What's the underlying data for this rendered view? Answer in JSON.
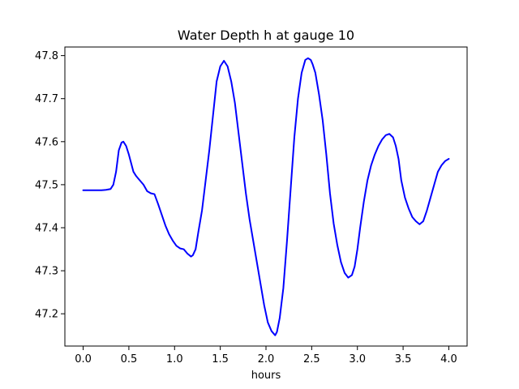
{
  "chart_data": {
    "type": "line",
    "title": "Water Depth h at gauge 10",
    "xlabel": "hours",
    "ylabel": "",
    "xlim": [
      -0.2,
      4.2
    ],
    "ylim": [
      47.125,
      47.82
    ],
    "xticks": [
      0.0,
      0.5,
      1.0,
      1.5,
      2.0,
      2.5,
      3.0,
      3.5,
      4.0
    ],
    "xtick_labels": [
      "0.0",
      "0.5",
      "1.0",
      "1.5",
      "2.0",
      "2.5",
      "3.0",
      "3.5",
      "4.0"
    ],
    "yticks": [
      47.2,
      47.3,
      47.4,
      47.5,
      47.6,
      47.7,
      47.8
    ],
    "ytick_labels": [
      "47.2",
      "47.3",
      "47.4",
      "47.5",
      "47.6",
      "47.7",
      "47.8"
    ],
    "grid": false,
    "series": [
      {
        "color": "#0000ff",
        "x": [
          0.0,
          0.05,
          0.1,
          0.15,
          0.2,
          0.25,
          0.3,
          0.33,
          0.36,
          0.39,
          0.42,
          0.44,
          0.47,
          0.5,
          0.55,
          0.58,
          0.62,
          0.66,
          0.7,
          0.74,
          0.78,
          0.82,
          0.86,
          0.9,
          0.94,
          0.98,
          1.02,
          1.06,
          1.1,
          1.14,
          1.18,
          1.2,
          1.23,
          1.26,
          1.3,
          1.34,
          1.38,
          1.42,
          1.46,
          1.5,
          1.54,
          1.58,
          1.62,
          1.66,
          1.7,
          1.74,
          1.78,
          1.82,
          1.86,
          1.9,
          1.94,
          1.98,
          2.02,
          2.06,
          2.1,
          2.12,
          2.15,
          2.19,
          2.23,
          2.27,
          2.31,
          2.35,
          2.39,
          2.43,
          2.46,
          2.49,
          2.51,
          2.54,
          2.58,
          2.62,
          2.66,
          2.7,
          2.74,
          2.78,
          2.82,
          2.86,
          2.9,
          2.94,
          2.97,
          3.0,
          3.03,
          3.07,
          3.11,
          3.15,
          3.19,
          3.23,
          3.27,
          3.31,
          3.35,
          3.39,
          3.42,
          3.45,
          3.48,
          3.52,
          3.56,
          3.6,
          3.64,
          3.68,
          3.72,
          3.76,
          3.8,
          3.84,
          3.88,
          3.92,
          3.96,
          4.0
        ],
        "y": [
          47.487,
          47.487,
          47.487,
          47.487,
          47.487,
          47.488,
          47.49,
          47.5,
          47.53,
          47.58,
          47.598,
          47.6,
          47.59,
          47.57,
          47.53,
          47.52,
          47.51,
          47.5,
          47.485,
          47.48,
          47.478,
          47.455,
          47.43,
          47.405,
          47.385,
          47.37,
          47.358,
          47.352,
          47.35,
          47.34,
          47.333,
          47.336,
          47.35,
          47.39,
          47.44,
          47.51,
          47.58,
          47.66,
          47.74,
          47.775,
          47.788,
          47.775,
          47.74,
          47.69,
          47.62,
          47.55,
          47.48,
          47.42,
          47.37,
          47.32,
          47.27,
          47.22,
          47.18,
          47.16,
          47.15,
          47.158,
          47.19,
          47.26,
          47.37,
          47.49,
          47.61,
          47.7,
          47.76,
          47.79,
          47.794,
          47.79,
          47.78,
          47.76,
          47.71,
          47.65,
          47.57,
          47.48,
          47.41,
          47.36,
          47.32,
          47.295,
          47.284,
          47.29,
          47.31,
          47.35,
          47.4,
          47.46,
          47.51,
          47.545,
          47.57,
          47.59,
          47.605,
          47.615,
          47.618,
          47.61,
          47.59,
          47.56,
          47.51,
          47.47,
          47.445,
          47.425,
          47.415,
          47.408,
          47.415,
          47.44,
          47.47,
          47.5,
          47.53,
          47.545,
          47.555,
          47.56
        ]
      }
    ]
  }
}
